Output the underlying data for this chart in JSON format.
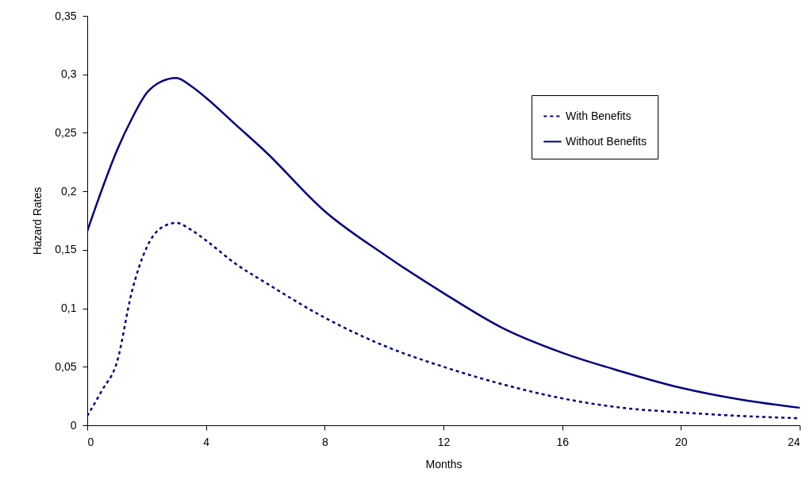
{
  "chart_data": {
    "type": "line",
    "xlabel": "Months",
    "ylabel": "Hazard Rates",
    "xlim": [
      0,
      24
    ],
    "xticks": [
      0,
      4,
      8,
      12,
      16,
      20,
      24
    ],
    "ylim": [
      0,
      0.35
    ],
    "yticks": [
      0,
      {
        "value": 0.05,
        "label": "0,05"
      },
      {
        "value": 0.1,
        "label": "0,1"
      },
      {
        "value": 0.15,
        "label": "0,15"
      },
      {
        "value": 0.2,
        "label": "0,2"
      },
      {
        "value": 0.25,
        "label": "0,25"
      },
      {
        "value": 0.3,
        "label": "0,3"
      },
      {
        "value": 0.35,
        "label": "0,35"
      }
    ],
    "grid": false,
    "legend": "top right",
    "marker": "none",
    "x": [
      0,
      0.5,
      1,
      1.5,
      2,
      2.5,
      3,
      3.5,
      4,
      5,
      6,
      8,
      10,
      12,
      14,
      16,
      18,
      20,
      22,
      24
    ],
    "series": [
      {
        "name": "With Benefits",
        "color": "#000080",
        "line_style": "dashed",
        "values": [
          0.008,
          0.03,
          0.054,
          0.114,
          0.152,
          0.169,
          0.173,
          0.167,
          0.158,
          0.138,
          0.122,
          0.092,
          0.068,
          0.05,
          0.035,
          0.023,
          0.015,
          0.011,
          0.008,
          0.006
        ]
      },
      {
        "name": "Without Benefits",
        "color": "#000080",
        "line_style": "solid",
        "values": [
          0.166,
          0.202,
          0.235,
          0.262,
          0.284,
          0.294,
          0.297,
          0.29,
          0.28,
          0.257,
          0.234,
          0.183,
          0.146,
          0.113,
          0.083,
          0.062,
          0.046,
          0.032,
          0.022,
          0.015
        ]
      }
    ]
  }
}
